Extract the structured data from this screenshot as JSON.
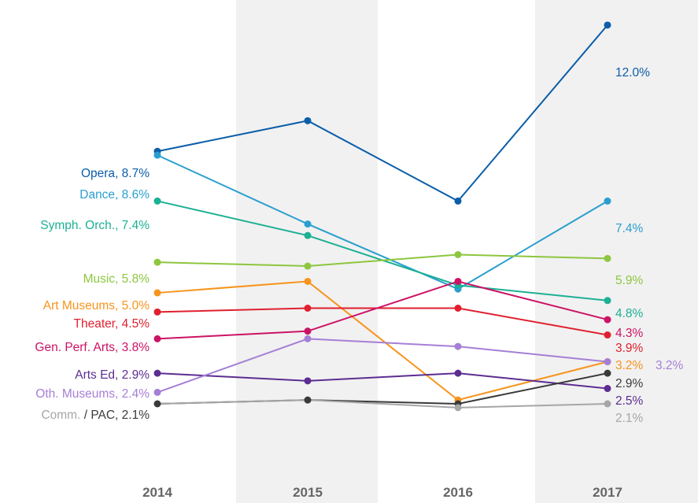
{
  "chart_data": {
    "type": "line",
    "categories": [
      "2014",
      "2015",
      "2016",
      "2017"
    ],
    "ylim": [
      0,
      13
    ],
    "grid": false,
    "legend": "none",
    "series": [
      {
        "name": "Opera",
        "left_label": "Opera, 8.7%",
        "right_label": "12.0%",
        "color": "#0b5ea8",
        "values": [
          8.7,
          9.5,
          7.4,
          12.0
        ]
      },
      {
        "name": "Dance",
        "left_label": "Dance, 8.6%",
        "right_label": "7.4%",
        "color": "#2a9fcf",
        "values": [
          8.6,
          6.8,
          5.1,
          7.4
        ]
      },
      {
        "name": "Symph. Orch.",
        "left_label": "Symph. Orch., 7.4%",
        "right_label": "4.8%",
        "color": "#1cb094",
        "values": [
          7.4,
          6.5,
          5.2,
          4.8
        ]
      },
      {
        "name": "Music",
        "left_label": "Music, 5.8%",
        "right_label": "5.9%",
        "color": "#8dc63f",
        "values": [
          5.8,
          5.7,
          6.0,
          5.9
        ]
      },
      {
        "name": "Art Museums",
        "left_label": "Art Museums, 5.0%",
        "right_label": "3.2%",
        "color": "#f7941d",
        "values": [
          5.0,
          5.3,
          2.2,
          3.2
        ]
      },
      {
        "name": "Theater",
        "left_label": "Theater, 4.5%",
        "right_label": "3.9%",
        "color": "#e0202f",
        "values": [
          4.5,
          4.6,
          4.6,
          3.9
        ]
      },
      {
        "name": "Gen. Perf. Arts",
        "left_label": "Gen. Perf. Arts, 3.8%",
        "right_label": "4.3%",
        "color": "#cc1266",
        "values": [
          3.8,
          4.0,
          5.3,
          4.3
        ]
      },
      {
        "name": "Arts Ed",
        "left_label": "Arts Ed, 2.9%",
        "right_label": "2.5%",
        "color": "#5c2d91",
        "values": [
          2.9,
          2.7,
          2.9,
          2.5
        ]
      },
      {
        "name": "Oth. Museums",
        "left_label": "Oth. Museums, 2.4%",
        "right_label": "3.2%",
        "color": "#a57fd6",
        "values": [
          2.4,
          3.8,
          3.6,
          3.2
        ]
      },
      {
        "name": "Comm. / PAC",
        "left_label_parts": [
          "Comm.",
          " / PAC, 2.1%"
        ],
        "right_label": "2.9%",
        "color": "#3a3a3a",
        "values": [
          2.1,
          2.2,
          2.1,
          2.9
        ]
      },
      {
        "name": "Comm.",
        "right_label": "2.1%",
        "color": "#a6a6a6",
        "values": [
          2.1,
          2.2,
          2.0,
          2.1
        ]
      }
    ]
  }
}
